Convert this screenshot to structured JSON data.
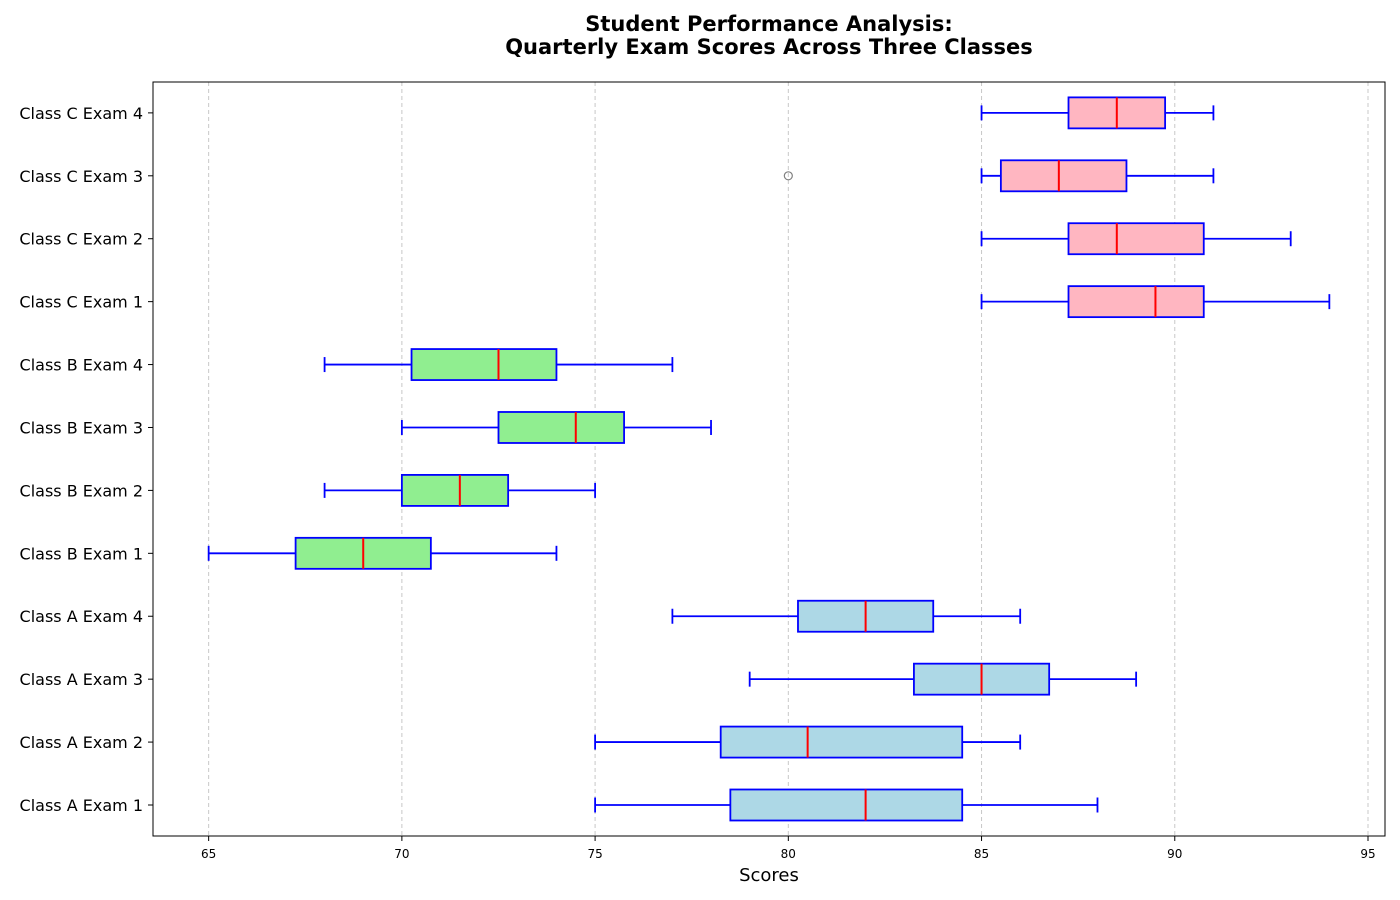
{
  "chart_data": {
    "type": "boxplot",
    "orientation": "horizontal",
    "title": "Student Performance Analysis:\nQuarterly Exam Scores Across Three Classes",
    "title_lines": [
      "Student Performance Analysis:",
      "Quarterly Exam Scores Across Three Classes"
    ],
    "xlabel": "Scores",
    "ylabel": "",
    "xlim": [
      63.56,
      95.44
    ],
    "xticks": [
      65,
      70,
      75,
      80,
      85,
      90,
      95
    ],
    "grid": "x-dashed",
    "colors": {
      "Class A": "#add8e6",
      "Class B": "#90ee90",
      "Class C": "#ffb6c1",
      "box_edge": "#0000ff",
      "whisker": "#0000ff",
      "median": "#ff0000",
      "flier": "#808080",
      "grid": "#c8c8c8"
    },
    "series": [
      {
        "label": "Class A Exam 1",
        "group": "Class A",
        "whislo": 75,
        "q1": 78.5,
        "median": 82,
        "q3": 84.5,
        "whishi": 88,
        "fliers": []
      },
      {
        "label": "Class A Exam 2",
        "group": "Class A",
        "whislo": 75,
        "q1": 78.25,
        "median": 80.5,
        "q3": 84.5,
        "whishi": 86,
        "fliers": []
      },
      {
        "label": "Class A Exam 3",
        "group": "Class A",
        "whislo": 79,
        "q1": 83.25,
        "median": 85,
        "q3": 86.75,
        "whishi": 89,
        "fliers": []
      },
      {
        "label": "Class A Exam 4",
        "group": "Class A",
        "whislo": 77,
        "q1": 80.25,
        "median": 82,
        "q3": 83.75,
        "whishi": 86,
        "fliers": []
      },
      {
        "label": "Class B Exam 1",
        "group": "Class B",
        "whislo": 65,
        "q1": 67.25,
        "median": 69,
        "q3": 70.75,
        "whishi": 74,
        "fliers": []
      },
      {
        "label": "Class B Exam 2",
        "group": "Class B",
        "whislo": 68,
        "q1": 70,
        "median": 71.5,
        "q3": 72.75,
        "whishi": 75,
        "fliers": []
      },
      {
        "label": "Class B Exam 3",
        "group": "Class B",
        "whislo": 70,
        "q1": 72.5,
        "median": 74.5,
        "q3": 75.75,
        "whishi": 78,
        "fliers": []
      },
      {
        "label": "Class B Exam 4",
        "group": "Class B",
        "whislo": 68,
        "q1": 70.25,
        "median": 72.5,
        "q3": 74,
        "whishi": 77,
        "fliers": []
      },
      {
        "label": "Class C Exam 1",
        "group": "Class C",
        "whislo": 85,
        "q1": 87.25,
        "median": 89.5,
        "q3": 90.75,
        "whishi": 94,
        "fliers": []
      },
      {
        "label": "Class C Exam 2",
        "group": "Class C",
        "whislo": 85,
        "q1": 87.25,
        "median": 88.5,
        "q3": 90.75,
        "whishi": 93,
        "fliers": []
      },
      {
        "label": "Class C Exam 3",
        "group": "Class C",
        "whislo": 85,
        "q1": 85.5,
        "median": 87,
        "q3": 88.75,
        "whishi": 91,
        "fliers": [
          80
        ]
      },
      {
        "label": "Class C Exam 4",
        "group": "Class C",
        "whislo": 85,
        "q1": 87.25,
        "median": 88.5,
        "q3": 89.75,
        "whishi": 91,
        "fliers": []
      }
    ]
  }
}
